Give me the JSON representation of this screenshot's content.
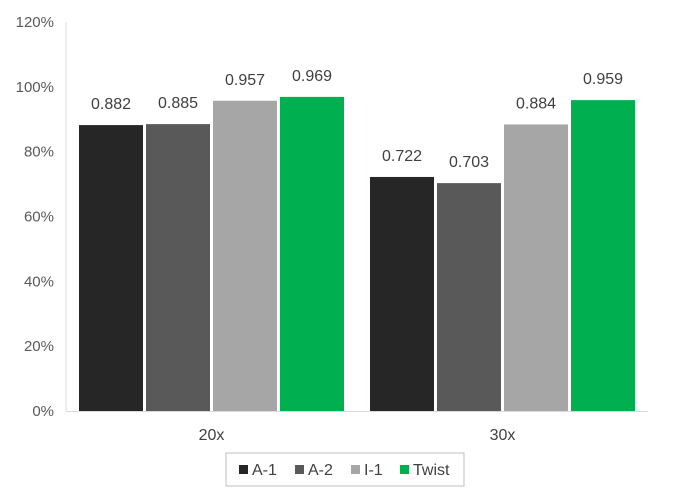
{
  "chart_data": {
    "type": "bar",
    "categories": [
      "20x",
      "30x"
    ],
    "series": [
      {
        "name": "A-1",
        "values": [
          0.882,
          0.722
        ],
        "color": "#262626"
      },
      {
        "name": "A-2",
        "values": [
          0.885,
          0.703
        ],
        "color": "#595959"
      },
      {
        "name": "I-1",
        "values": [
          0.957,
          0.884
        ],
        "color": "#a6a6a6"
      },
      {
        "name": "Twist",
        "values": [
          0.969,
          0.959
        ],
        "color": "#00b050"
      }
    ],
    "y_ticks": [
      "0%",
      "20%",
      "40%",
      "60%",
      "80%",
      "100%",
      "120%"
    ],
    "ylim": [
      0,
      1.2
    ],
    "title": "",
    "xlabel": "",
    "ylabel": "",
    "grid": false,
    "legend_position": "bottom"
  }
}
